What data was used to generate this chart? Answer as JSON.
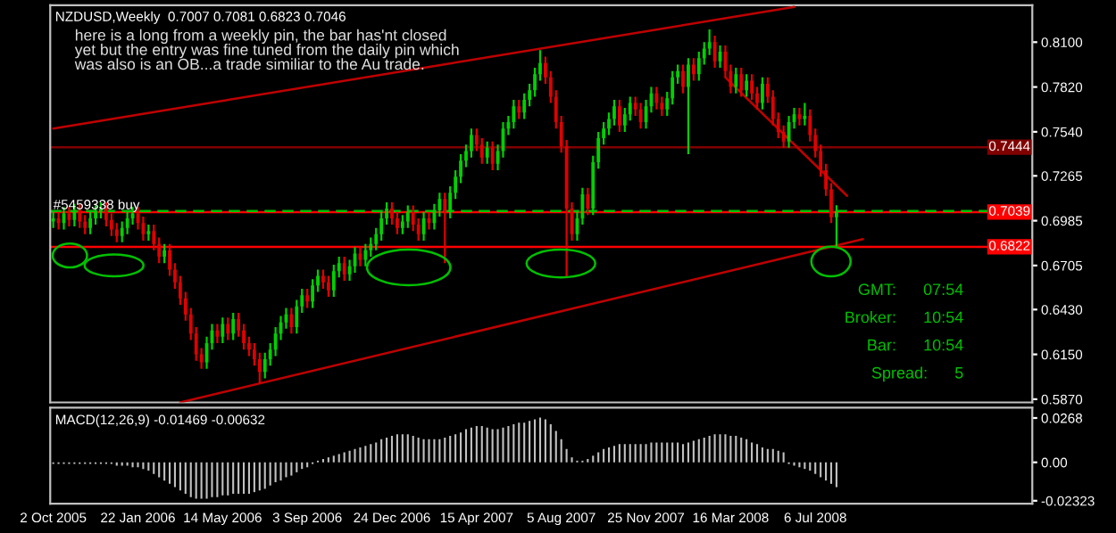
{
  "chart_data": [
    {
      "type": "candlestick",
      "title": "NZDUSD,Weekly  0.7007 0.7081 0.6823 0.7046",
      "annotations": [
        "here is a long from a weekly pin, the bar has'nt closed\nyet but the entry was fine tuned from the daily pin which\nwas also is an OB...a trade similiar to the Au trade.",
        {
          "text": "#5459338 buy",
          "x": "2005-10-02",
          "y": 0.7039
        },
        "GMT:      07:54",
        "Broker:      10:54",
        "Bar:      10:54",
        "Spread:      5"
      ],
      "x": [
        "2005-10-02",
        "2005-10-09",
        "2005-10-16",
        "2005-10-23",
        "2005-10-30",
        "2005-11-06",
        "2005-11-13",
        "2005-11-20",
        "2005-11-27",
        "2005-12-04",
        "2005-12-11",
        "2005-12-18",
        "2005-12-25",
        "2006-01-01",
        "2006-01-08",
        "2006-01-15",
        "2006-01-22",
        "2006-01-29",
        "2006-02-05",
        "2006-02-12",
        "2006-02-19",
        "2006-02-26",
        "2006-03-05",
        "2006-03-12",
        "2006-03-19",
        "2006-03-26",
        "2006-04-02",
        "2006-04-09",
        "2006-04-16",
        "2006-04-23",
        "2006-04-30",
        "2006-05-07",
        "2006-05-14",
        "2006-05-21",
        "2006-05-28",
        "2006-06-04",
        "2006-06-11",
        "2006-06-18",
        "2006-06-25",
        "2006-07-02",
        "2006-07-09",
        "2006-07-16",
        "2006-07-23",
        "2006-07-30",
        "2006-08-06",
        "2006-08-13",
        "2006-08-20",
        "2006-08-27",
        "2006-09-03",
        "2006-09-10",
        "2006-09-17",
        "2006-09-24",
        "2006-10-01",
        "2006-10-08",
        "2006-10-15",
        "2006-10-22",
        "2006-10-29",
        "2006-11-05",
        "2006-11-12",
        "2006-11-19",
        "2006-11-26",
        "2006-12-03",
        "2006-12-10",
        "2006-12-17",
        "2006-12-24",
        "2006-12-31",
        "2007-01-07",
        "2007-01-14",
        "2007-01-21",
        "2007-01-28",
        "2007-02-04",
        "2007-02-11",
        "2007-02-18",
        "2007-02-25",
        "2007-03-04",
        "2007-03-11",
        "2007-03-18",
        "2007-03-25",
        "2007-04-01",
        "2007-04-08",
        "2007-04-15",
        "2007-04-22",
        "2007-04-29",
        "2007-05-06",
        "2007-05-13",
        "2007-05-20",
        "2007-05-27",
        "2007-06-03",
        "2007-06-10",
        "2007-06-17",
        "2007-06-24",
        "2007-07-01",
        "2007-07-08",
        "2007-07-15",
        "2007-07-22",
        "2007-07-29",
        "2007-08-05",
        "2007-08-12",
        "2007-08-19",
        "2007-08-26",
        "2007-09-02",
        "2007-09-09",
        "2007-09-16",
        "2007-09-23",
        "2007-09-30",
        "2007-10-07",
        "2007-10-14",
        "2007-10-21",
        "2007-10-28",
        "2007-11-04",
        "2007-11-11",
        "2007-11-18",
        "2007-11-25",
        "2007-12-02",
        "2007-12-09",
        "2007-12-16",
        "2007-12-23",
        "2007-12-30",
        "2008-01-06",
        "2008-01-13",
        "2008-01-20",
        "2008-01-27",
        "2008-02-03",
        "2008-02-10",
        "2008-02-17",
        "2008-02-24",
        "2008-03-02",
        "2008-03-09",
        "2008-03-16",
        "2008-03-23",
        "2008-03-30",
        "2008-04-06",
        "2008-04-13",
        "2008-04-20",
        "2008-04-27",
        "2008-05-04",
        "2008-05-11",
        "2008-05-18",
        "2008-05-25",
        "2008-06-01",
        "2008-06-08",
        "2008-06-15",
        "2008-06-22",
        "2008-06-29",
        "2008-07-06",
        "2008-07-13",
        "2008-07-20",
        "2008-07-27",
        "2008-08-03"
      ],
      "ohlc": [
        [
          0.698,
          0.704,
          0.694,
          0.7
        ],
        [
          0.7,
          0.704,
          0.693,
          0.697
        ],
        [
          0.697,
          0.707,
          0.693,
          0.703
        ],
        [
          0.703,
          0.707,
          0.695,
          0.699
        ],
        [
          0.699,
          0.709,
          0.695,
          0.705
        ],
        [
          0.705,
          0.709,
          0.694,
          0.698
        ],
        [
          0.698,
          0.702,
          0.69,
          0.694
        ],
        [
          0.694,
          0.704,
          0.69,
          0.7
        ],
        [
          0.7,
          0.708,
          0.696,
          0.704
        ],
        [
          0.704,
          0.71,
          0.7,
          0.706
        ],
        [
          0.706,
          0.71,
          0.695,
          0.699
        ],
        [
          0.699,
          0.703,
          0.689,
          0.693
        ],
        [
          0.693,
          0.697,
          0.685,
          0.689
        ],
        [
          0.689,
          0.698,
          0.685,
          0.694
        ],
        [
          0.694,
          0.704,
          0.69,
          0.7
        ],
        [
          0.7,
          0.707,
          0.696,
          0.703
        ],
        [
          0.703,
          0.707,
          0.693,
          0.697
        ],
        [
          0.697,
          0.701,
          0.686,
          0.69
        ],
        [
          0.69,
          0.696,
          0.686,
          0.692
        ],
        [
          0.692,
          0.696,
          0.68,
          0.684
        ],
        [
          0.684,
          0.688,
          0.672,
          0.676
        ],
        [
          0.676,
          0.684,
          0.672,
          0.68
        ],
        [
          0.68,
          0.684,
          0.664,
          0.668
        ],
        [
          0.668,
          0.672,
          0.656,
          0.66
        ],
        [
          0.66,
          0.664,
          0.646,
          0.65
        ],
        [
          0.65,
          0.654,
          0.636,
          0.64
        ],
        [
          0.64,
          0.644,
          0.624,
          0.628
        ],
        [
          0.628,
          0.632,
          0.611,
          0.615
        ],
        [
          0.615,
          0.619,
          0.606,
          0.61
        ],
        [
          0.61,
          0.626,
          0.606,
          0.622
        ],
        [
          0.622,
          0.634,
          0.618,
          0.63
        ],
        [
          0.63,
          0.634,
          0.622,
          0.626
        ],
        [
          0.626,
          0.638,
          0.622,
          0.634
        ],
        [
          0.634,
          0.638,
          0.624,
          0.628
        ],
        [
          0.628,
          0.641,
          0.624,
          0.637
        ],
        [
          0.637,
          0.641,
          0.626,
          0.63
        ],
        [
          0.63,
          0.634,
          0.618,
          0.622
        ],
        [
          0.622,
          0.626,
          0.614,
          0.618
        ],
        [
          0.618,
          0.622,
          0.608,
          0.612
        ],
        [
          0.612,
          0.616,
          0.597,
          0.604
        ],
        [
          0.604,
          0.616,
          0.6,
          0.612
        ],
        [
          0.612,
          0.622,
          0.608,
          0.618
        ],
        [
          0.618,
          0.632,
          0.614,
          0.628
        ],
        [
          0.628,
          0.639,
          0.624,
          0.635
        ],
        [
          0.635,
          0.644,
          0.631,
          0.64
        ],
        [
          0.64,
          0.644,
          0.628,
          0.632
        ],
        [
          0.632,
          0.649,
          0.628,
          0.645
        ],
        [
          0.645,
          0.656,
          0.641,
          0.652
        ],
        [
          0.652,
          0.656,
          0.644,
          0.648
        ],
        [
          0.648,
          0.662,
          0.644,
          0.658
        ],
        [
          0.658,
          0.668,
          0.654,
          0.664
        ],
        [
          0.664,
          0.668,
          0.656,
          0.66
        ],
        [
          0.66,
          0.664,
          0.651,
          0.655
        ],
        [
          0.655,
          0.671,
          0.651,
          0.667
        ],
        [
          0.667,
          0.676,
          0.663,
          0.672
        ],
        [
          0.672,
          0.676,
          0.661,
          0.665
        ],
        [
          0.665,
          0.674,
          0.661,
          0.67
        ],
        [
          0.67,
          0.682,
          0.666,
          0.678
        ],
        [
          0.678,
          0.682,
          0.67,
          0.674
        ],
        [
          0.674,
          0.684,
          0.67,
          0.68
        ],
        [
          0.68,
          0.688,
          0.676,
          0.684
        ],
        [
          0.684,
          0.694,
          0.68,
          0.69
        ],
        [
          0.69,
          0.704,
          0.686,
          0.7
        ],
        [
          0.7,
          0.71,
          0.696,
          0.706
        ],
        [
          0.706,
          0.71,
          0.696,
          0.7
        ],
        [
          0.7,
          0.704,
          0.69,
          0.694
        ],
        [
          0.694,
          0.702,
          0.69,
          0.698
        ],
        [
          0.698,
          0.708,
          0.694,
          0.704
        ],
        [
          0.704,
          0.708,
          0.692,
          0.696
        ],
        [
          0.696,
          0.7,
          0.686,
          0.69
        ],
        [
          0.69,
          0.704,
          0.686,
          0.7
        ],
        [
          0.7,
          0.704,
          0.693,
          0.697
        ],
        [
          0.697,
          0.709,
          0.693,
          0.705
        ],
        [
          0.705,
          0.716,
          0.701,
          0.712
        ],
        [
          0.712,
          0.716,
          0.672,
          0.704
        ],
        [
          0.704,
          0.72,
          0.7,
          0.716
        ],
        [
          0.716,
          0.73,
          0.712,
          0.726
        ],
        [
          0.726,
          0.74,
          0.722,
          0.736
        ],
        [
          0.736,
          0.746,
          0.732,
          0.742
        ],
        [
          0.742,
          0.756,
          0.738,
          0.752
        ],
        [
          0.752,
          0.756,
          0.742,
          0.746
        ],
        [
          0.746,
          0.75,
          0.734,
          0.738
        ],
        [
          0.738,
          0.748,
          0.734,
          0.744
        ],
        [
          0.744,
          0.748,
          0.73,
          0.734
        ],
        [
          0.734,
          0.746,
          0.73,
          0.742
        ],
        [
          0.742,
          0.76,
          0.738,
          0.756
        ],
        [
          0.756,
          0.764,
          0.752,
          0.76
        ],
        [
          0.76,
          0.774,
          0.756,
          0.77
        ],
        [
          0.77,
          0.774,
          0.762,
          0.766
        ],
        [
          0.766,
          0.778,
          0.762,
          0.774
        ],
        [
          0.774,
          0.784,
          0.77,
          0.78
        ],
        [
          0.78,
          0.794,
          0.776,
          0.79
        ],
        [
          0.79,
          0.805,
          0.786,
          0.797
        ],
        [
          0.797,
          0.801,
          0.784,
          0.788
        ],
        [
          0.788,
          0.792,
          0.772,
          0.776
        ],
        [
          0.776,
          0.78,
          0.756,
          0.76
        ],
        [
          0.76,
          0.764,
          0.741,
          0.745
        ],
        [
          0.745,
          0.749,
          0.663,
          0.706
        ],
        [
          0.706,
          0.71,
          0.686,
          0.69
        ],
        [
          0.69,
          0.704,
          0.686,
          0.7
        ],
        [
          0.7,
          0.719,
          0.696,
          0.715
        ],
        [
          0.715,
          0.719,
          0.702,
          0.706
        ],
        [
          0.706,
          0.739,
          0.702,
          0.735
        ],
        [
          0.735,
          0.754,
          0.731,
          0.75
        ],
        [
          0.75,
          0.76,
          0.746,
          0.756
        ],
        [
          0.756,
          0.766,
          0.752,
          0.762
        ],
        [
          0.762,
          0.774,
          0.758,
          0.77
        ],
        [
          0.77,
          0.774,
          0.754,
          0.758
        ],
        [
          0.758,
          0.769,
          0.754,
          0.765
        ],
        [
          0.765,
          0.776,
          0.761,
          0.772
        ],
        [
          0.772,
          0.776,
          0.764,
          0.768
        ],
        [
          0.768,
          0.772,
          0.756,
          0.76
        ],
        [
          0.76,
          0.774,
          0.756,
          0.77
        ],
        [
          0.77,
          0.782,
          0.766,
          0.778
        ],
        [
          0.778,
          0.782,
          0.768,
          0.772
        ],
        [
          0.772,
          0.776,
          0.764,
          0.768
        ],
        [
          0.768,
          0.779,
          0.764,
          0.775
        ],
        [
          0.775,
          0.792,
          0.771,
          0.788
        ],
        [
          0.788,
          0.796,
          0.784,
          0.792
        ],
        [
          0.792,
          0.796,
          0.778,
          0.782
        ],
        [
          0.782,
          0.8,
          0.74,
          0.796
        ],
        [
          0.796,
          0.8,
          0.786,
          0.79
        ],
        [
          0.79,
          0.804,
          0.786,
          0.8
        ],
        [
          0.8,
          0.81,
          0.796,
          0.806
        ],
        [
          0.806,
          0.818,
          0.802,
          0.81
        ],
        [
          0.81,
          0.814,
          0.794,
          0.798
        ],
        [
          0.798,
          0.808,
          0.794,
          0.804
        ],
        [
          0.804,
          0.808,
          0.788,
          0.792
        ],
        [
          0.792,
          0.796,
          0.778,
          0.782
        ],
        [
          0.782,
          0.794,
          0.778,
          0.79
        ],
        [
          0.79,
          0.794,
          0.776,
          0.78
        ],
        [
          0.78,
          0.79,
          0.776,
          0.786
        ],
        [
          0.786,
          0.79,
          0.774,
          0.778
        ],
        [
          0.778,
          0.782,
          0.768,
          0.772
        ],
        [
          0.772,
          0.788,
          0.768,
          0.784
        ],
        [
          0.784,
          0.788,
          0.772,
          0.776
        ],
        [
          0.776,
          0.78,
          0.758,
          0.762
        ],
        [
          0.762,
          0.766,
          0.75,
          0.754
        ],
        [
          0.754,
          0.758,
          0.744,
          0.748
        ],
        [
          0.748,
          0.764,
          0.744,
          0.76
        ],
        [
          0.76,
          0.769,
          0.756,
          0.765
        ],
        [
          0.765,
          0.769,
          0.758,
          0.762
        ],
        [
          0.762,
          0.772,
          0.758,
          0.764
        ],
        [
          0.764,
          0.768,
          0.748,
          0.752
        ],
        [
          0.752,
          0.756,
          0.738,
          0.742
        ],
        [
          0.742,
          0.746,
          0.726,
          0.73
        ],
        [
          0.73,
          0.734,
          0.714,
          0.718
        ],
        [
          0.718,
          0.722,
          0.697,
          0.7007
        ],
        [
          0.7007,
          0.7081,
          0.6823,
          0.7046
        ]
      ],
      "series": [
        {
          "type": "line",
          "color": "#c00000",
          "x": [
            "2005-10-02",
            "2008-06-08"
          ],
          "values": [
            0.756,
            0.832
          ]
        },
        {
          "type": "line",
          "color": "#c00000",
          "x": [
            "2006-03-19",
            "2008-09-07"
          ],
          "values": [
            0.585,
            0.687
          ]
        },
        {
          "type": "line",
          "color": "#c00000",
          "x": [
            "2008-03-09",
            "2008-08-17"
          ],
          "values": [
            0.788,
            0.714
          ]
        }
      ],
      "ref_lines": [
        {
          "axis": "y",
          "value": 0.7444,
          "label": "0.7444",
          "color": "#800000"
        },
        {
          "axis": "y",
          "value": 0.7039,
          "label": "0.7039",
          "color": "#ff0000"
        },
        {
          "axis": "y",
          "value": 0.6822,
          "label": "0.6822",
          "color": "#ff0000"
        },
        {
          "axis": "y",
          "value": 0.7046,
          "color": "#00c000",
          "line_style": "dashed"
        }
      ],
      "xlim": [
        "2005-09-28",
        "2009-04-19"
      ],
      "ylim": [
        0.585,
        0.833
      ],
      "yticks": [
        {
          "value": 0.81,
          "label": "0.8100"
        },
        {
          "value": 0.782,
          "label": "0.7820"
        },
        {
          "value": 0.754,
          "label": "0.7540"
        },
        {
          "value": 0.7265,
          "label": "0.7265"
        },
        {
          "value": 0.6985,
          "label": "0.6985"
        },
        {
          "value": 0.6705,
          "label": "0.6705"
        },
        {
          "value": 0.643,
          "label": "0.6430"
        },
        {
          "value": 0.615,
          "label": "0.6150"
        },
        {
          "value": 0.587,
          "label": "0.5870"
        }
      ],
      "tick_labels": "y",
      "grid": false
    },
    {
      "type": "bar",
      "title": "MACD(12,26,9) -0.01469 -0.00632",
      "color": "#c0c0c0",
      "x": [
        "2005-10-02",
        "2005-10-09",
        "2005-10-16",
        "2005-10-23",
        "2005-10-30",
        "2005-11-06",
        "2005-11-13",
        "2005-11-20",
        "2005-11-27",
        "2005-12-04",
        "2005-12-11",
        "2005-12-18",
        "2005-12-25",
        "2006-01-01",
        "2006-01-08",
        "2006-01-15",
        "2006-01-22",
        "2006-01-29",
        "2006-02-05",
        "2006-02-12",
        "2006-02-19",
        "2006-02-26",
        "2006-03-05",
        "2006-03-12",
        "2006-03-19",
        "2006-03-26",
        "2006-04-02",
        "2006-04-09",
        "2006-04-16",
        "2006-04-23",
        "2006-04-30",
        "2006-05-07",
        "2006-05-14",
        "2006-05-21",
        "2006-05-28",
        "2006-06-04",
        "2006-06-11",
        "2006-06-18",
        "2006-06-25",
        "2006-07-02",
        "2006-07-09",
        "2006-07-16",
        "2006-07-23",
        "2006-07-30",
        "2006-08-06",
        "2006-08-13",
        "2006-08-20",
        "2006-08-27",
        "2006-09-03",
        "2006-09-10",
        "2006-09-17",
        "2006-09-24",
        "2006-10-01",
        "2006-10-08",
        "2006-10-15",
        "2006-10-22",
        "2006-10-29",
        "2006-11-05",
        "2006-11-12",
        "2006-11-19",
        "2006-11-26",
        "2006-12-03",
        "2006-12-10",
        "2006-12-17",
        "2006-12-24",
        "2006-12-31",
        "2007-01-07",
        "2007-01-14",
        "2007-01-21",
        "2007-01-28",
        "2007-02-04",
        "2007-02-11",
        "2007-02-18",
        "2007-02-25",
        "2007-03-04",
        "2007-03-11",
        "2007-03-18",
        "2007-03-25",
        "2007-04-01",
        "2007-04-08",
        "2007-04-15",
        "2007-04-22",
        "2007-04-29",
        "2007-05-06",
        "2007-05-13",
        "2007-05-20",
        "2007-05-27",
        "2007-06-03",
        "2007-06-10",
        "2007-06-17",
        "2007-06-24",
        "2007-07-01",
        "2007-07-08",
        "2007-07-15",
        "2007-07-22",
        "2007-07-29",
        "2007-08-05",
        "2007-08-12",
        "2007-08-19",
        "2007-08-26",
        "2007-09-02",
        "2007-09-09",
        "2007-09-16",
        "2007-09-23",
        "2007-09-30",
        "2007-10-07",
        "2007-10-14",
        "2007-10-21",
        "2007-10-28",
        "2007-11-04",
        "2007-11-11",
        "2007-11-18",
        "2007-11-25",
        "2007-12-02",
        "2007-12-09",
        "2007-12-16",
        "2007-12-23",
        "2007-12-30",
        "2008-01-06",
        "2008-01-13",
        "2008-01-20",
        "2008-01-27",
        "2008-02-03",
        "2008-02-10",
        "2008-02-17",
        "2008-02-24",
        "2008-03-02",
        "2008-03-09",
        "2008-03-16",
        "2008-03-23",
        "2008-03-30",
        "2008-04-06",
        "2008-04-13",
        "2008-04-20",
        "2008-04-27",
        "2008-05-04",
        "2008-05-11",
        "2008-05-18",
        "2008-05-25",
        "2008-06-01",
        "2008-06-08",
        "2008-06-15",
        "2008-06-22",
        "2008-06-29",
        "2008-07-06",
        "2008-07-13",
        "2008-07-20",
        "2008-07-27",
        "2008-08-03"
      ],
      "values": [
        -0.001,
        -0.001,
        -0.001,
        -0.001,
        -0.001,
        -0.001,
        -0.001,
        -0.001,
        -0.001,
        -0.001,
        -0.001,
        -0.001,
        -0.002,
        -0.002,
        -0.002,
        -0.003,
        -0.003,
        -0.004,
        -0.005,
        -0.007,
        -0.009,
        -0.011,
        -0.013,
        -0.015,
        -0.017,
        -0.019,
        -0.021,
        -0.022,
        -0.022,
        -0.022,
        -0.021,
        -0.021,
        -0.02,
        -0.02,
        -0.019,
        -0.019,
        -0.019,
        -0.019,
        -0.018,
        -0.017,
        -0.016,
        -0.014,
        -0.012,
        -0.011,
        -0.009,
        -0.008,
        -0.006,
        -0.004,
        -0.003,
        -0.001,
        0.001,
        0.002,
        0.003,
        0.004,
        0.005,
        0.006,
        0.007,
        0.008,
        0.009,
        0.01,
        0.011,
        0.012,
        0.014,
        0.015,
        0.016,
        0.017,
        0.017,
        0.017,
        0.016,
        0.015,
        0.014,
        0.014,
        0.014,
        0.014,
        0.015,
        0.016,
        0.017,
        0.018,
        0.02,
        0.021,
        0.022,
        0.022,
        0.021,
        0.02,
        0.02,
        0.021,
        0.022,
        0.023,
        0.024,
        0.024,
        0.025,
        0.026,
        0.027,
        0.026,
        0.023,
        0.019,
        0.014,
        0.008,
        0.003,
        0.001,
        0.001,
        0.002,
        0.004,
        0.006,
        0.008,
        0.009,
        0.01,
        0.011,
        0.011,
        0.011,
        0.011,
        0.011,
        0.011,
        0.012,
        0.012,
        0.012,
        0.012,
        0.012,
        0.012,
        0.011,
        0.012,
        0.013,
        0.014,
        0.015,
        0.016,
        0.017,
        0.017,
        0.017,
        0.016,
        0.016,
        0.015,
        0.014,
        0.012,
        0.011,
        0.009,
        0.008,
        0.008,
        0.007,
        0.006,
        -0.001,
        -0.002,
        -0.003,
        -0.004,
        -0.005,
        -0.007,
        -0.009,
        -0.011,
        -0.013,
        -0.015
      ],
      "xlim": [
        "2005-09-28",
        "2009-04-19"
      ],
      "ylim": [
        -0.025,
        0.033
      ],
      "yticks": [
        {
          "value": 0.0268,
          "label": "0.0268"
        },
        {
          "value": 0,
          "label": "0.00"
        },
        {
          "value": -0.02323,
          "label": "-0.02323"
        }
      ],
      "xticks": [
        {
          "value": "2005-10-02",
          "label": "2 Oct 2005"
        },
        {
          "value": "2006-01-22",
          "label": "22 Jan 2006"
        },
        {
          "value": "2006-05-14",
          "label": "14 May 2006"
        },
        {
          "value": "2006-09-03",
          "label": "3 Sep 2006"
        },
        {
          "value": "2006-12-24",
          "label": "24 Dec 2006"
        },
        {
          "value": "2007-04-15",
          "label": "15 Apr 2007"
        },
        {
          "value": "2007-08-05",
          "label": "5 Aug 2007"
        },
        {
          "value": "2007-11-25",
          "label": "25 Nov 2007"
        },
        {
          "value": "2008-03-16",
          "label": "16 Mar 2008"
        },
        {
          "value": "2008-07-06",
          "label": "6 Jul 2008"
        }
      ],
      "grid": false
    }
  ]
}
